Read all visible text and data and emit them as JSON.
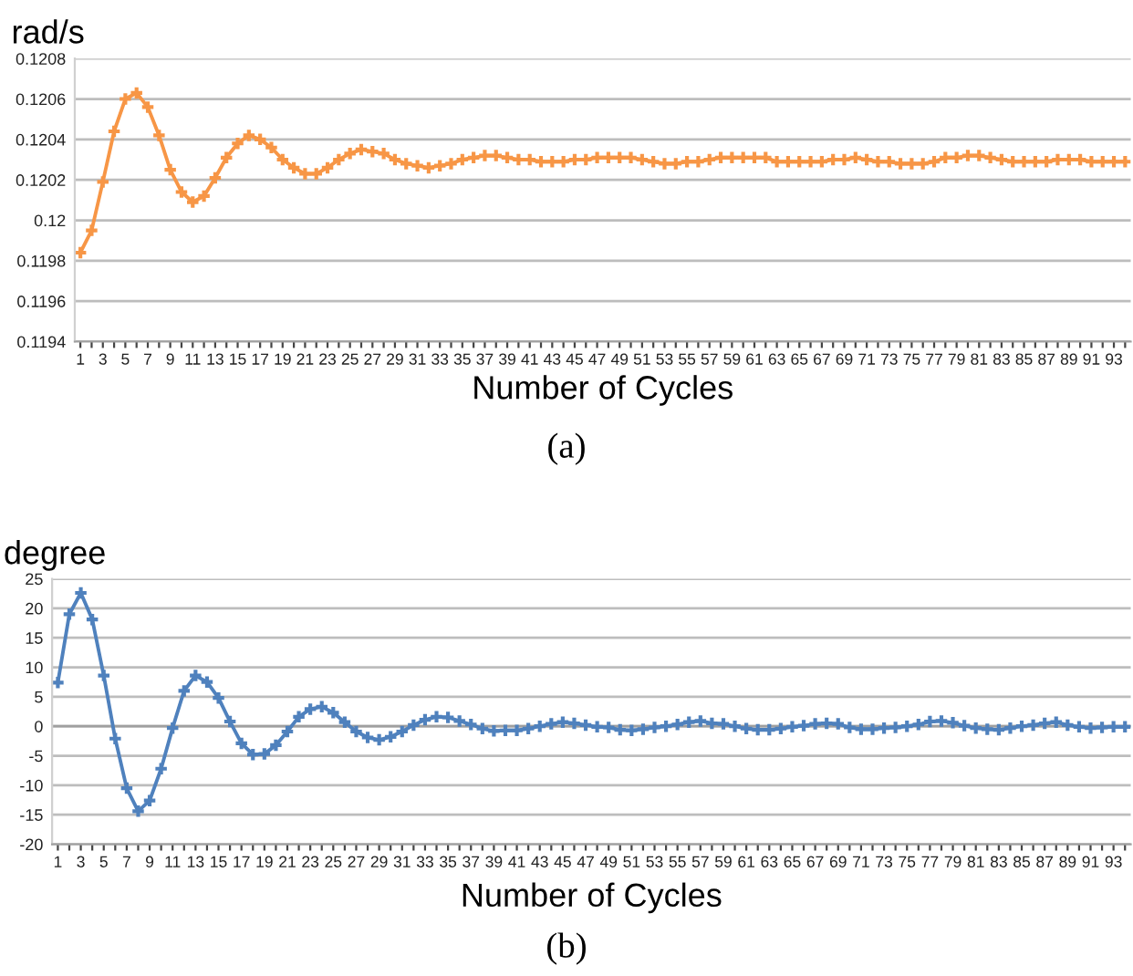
{
  "chart_data": [
    {
      "type": "line",
      "ylabel": "rad/s",
      "xlabel": "Number of Cycles",
      "annotations": [
        "(a)"
      ],
      "categories": [
        "1",
        null,
        "3",
        null,
        "5",
        null,
        "7",
        null,
        "9",
        null,
        "11",
        null,
        "13",
        null,
        "15",
        null,
        "17",
        null,
        "19",
        null,
        "21",
        null,
        "23",
        null,
        "25",
        null,
        "27",
        null,
        "29",
        null,
        "31",
        null,
        "33",
        null,
        "35",
        null,
        "37",
        null,
        "39",
        null,
        "41",
        null,
        "43",
        null,
        "45",
        null,
        "47",
        null,
        "49",
        null,
        "51",
        null,
        "53",
        null,
        "55",
        null,
        "57",
        null,
        "59",
        null,
        "61",
        null,
        "63",
        null,
        "65",
        null,
        "67",
        null,
        "69",
        null,
        "71",
        null,
        "73",
        null,
        "75",
        null,
        "77",
        null,
        "79",
        null,
        "81",
        null,
        "83",
        null,
        "85",
        null,
        "87",
        null,
        "89",
        null,
        "91",
        null,
        "93",
        null
      ],
      "series": [
        {
          "color": "#f79646",
          "values": [
            0.11984,
            0.11995,
            0.12019,
            0.12044,
            0.1206,
            0.12063,
            0.12056,
            0.12042,
            0.12025,
            0.12014,
            0.12009,
            0.12012,
            0.12021,
            0.12031,
            0.12038,
            0.12042,
            0.1204,
            0.12036,
            0.1203,
            0.12026,
            0.12023,
            0.12023,
            0.12026,
            0.1203,
            0.12033,
            0.12035,
            0.12034,
            0.12033,
            0.1203,
            0.12028,
            0.12027,
            0.12026,
            0.12027,
            0.12028,
            0.1203,
            0.12031,
            0.12032,
            0.12032,
            0.12031,
            0.1203,
            0.1203,
            0.12029,
            0.12029,
            0.12029,
            0.1203,
            0.1203,
            0.12031,
            0.12031,
            0.12031,
            0.12031,
            0.1203,
            0.12029,
            0.12028,
            0.12028,
            0.12029,
            0.12029,
            0.1203,
            0.12031,
            0.12031,
            0.12031,
            0.12031,
            0.12031,
            0.12029,
            0.12029,
            0.12029,
            0.12029,
            0.12029,
            0.1203,
            0.1203,
            0.12031,
            0.1203,
            0.12029,
            0.12029,
            0.12028,
            0.12028,
            0.12028,
            0.12029,
            0.12031,
            0.12031,
            0.12032,
            0.12032,
            0.12031,
            0.1203,
            0.12029,
            0.12029,
            0.12029,
            0.12029,
            0.1203,
            0.1203,
            0.1203,
            0.12029,
            0.12029,
            0.12029,
            0.12029
          ]
        }
      ],
      "ylim": [
        0.1194,
        0.1208
      ],
      "yticks": [
        0.1194,
        0.1196,
        0.1198,
        0.12,
        0.1202,
        0.1204,
        0.1206,
        0.1208
      ],
      "grid": "y",
      "marker": "cross",
      "line_style": "solid"
    },
    {
      "type": "line",
      "ylabel": "degree",
      "xlabel": "Number of Cycles",
      "annotations": [
        "(b)"
      ],
      "categories": [
        "1",
        null,
        "3",
        null,
        "5",
        null,
        "7",
        null,
        "9",
        null,
        "11",
        null,
        "13",
        null,
        "15",
        null,
        "17",
        null,
        "19",
        null,
        "21",
        null,
        "23",
        null,
        "25",
        null,
        "27",
        null,
        "29",
        null,
        "31",
        null,
        "33",
        null,
        "35",
        null,
        "37",
        null,
        "39",
        null,
        "41",
        null,
        "43",
        null,
        "45",
        null,
        "47",
        null,
        "49",
        null,
        "51",
        null,
        "53",
        null,
        "55",
        null,
        "57",
        null,
        "59",
        null,
        "61",
        null,
        "63",
        null,
        "65",
        null,
        "67",
        null,
        "69",
        null,
        "71",
        null,
        "73",
        null,
        "75",
        null,
        "77",
        null,
        "79",
        null,
        "81",
        null,
        "83",
        null,
        "85",
        null,
        "87",
        null,
        "89",
        null,
        "91",
        null,
        "93",
        null
      ],
      "series": [
        {
          "color": "#4f81bd",
          "values": [
            7.4,
            19.0,
            22.6,
            18.1,
            8.6,
            -2.1,
            -10.5,
            -14.4,
            -12.6,
            -7.2,
            -0.3,
            6.0,
            8.6,
            7.5,
            4.8,
            0.8,
            -2.9,
            -4.8,
            -4.7,
            -3.2,
            -0.9,
            1.6,
            2.9,
            3.3,
            2.3,
            0.7,
            -0.9,
            -1.9,
            -2.3,
            -1.8,
            -0.9,
            0.2,
            1.1,
            1.6,
            1.5,
            0.9,
            0.3,
            -0.4,
            -0.8,
            -0.7,
            -0.7,
            -0.4,
            0.0,
            0.4,
            0.7,
            0.5,
            0.2,
            -0.1,
            -0.2,
            -0.6,
            -0.7,
            -0.5,
            -0.2,
            0.0,
            0.3,
            0.7,
            0.9,
            0.5,
            0.4,
            0.0,
            -0.4,
            -0.6,
            -0.6,
            -0.4,
            -0.1,
            0.1,
            0.4,
            0.5,
            0.4,
            -0.2,
            -0.5,
            -0.5,
            -0.3,
            -0.2,
            0.0,
            0.3,
            0.8,
            0.9,
            0.6,
            0.1,
            -0.3,
            -0.5,
            -0.6,
            -0.3,
            0.0,
            0.2,
            0.5,
            0.7,
            0.2,
            -0.1,
            -0.3,
            -0.2,
            -0.1,
            -0.1
          ]
        }
      ],
      "ylim": [
        -20,
        25
      ],
      "yticks": [
        -20,
        -15,
        -10,
        -5,
        0,
        5,
        10,
        15,
        20,
        25
      ],
      "grid": "y",
      "marker": "cross",
      "line_style": "solid"
    }
  ]
}
